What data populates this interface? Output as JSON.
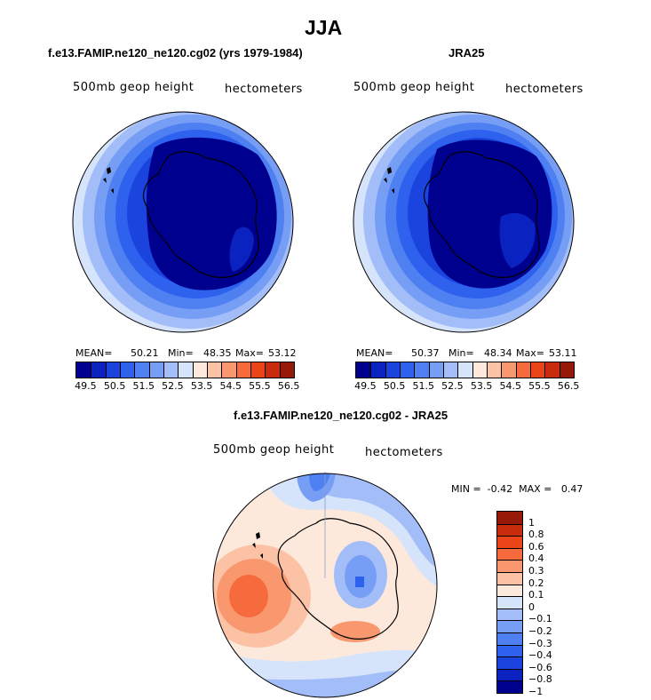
{
  "season": "JJA",
  "panels": {
    "model": {
      "title": "f.e13.FAMIP.ne120_ne120.cg02 (yrs 1979-1984)",
      "var": "500mb geop height",
      "units": "hectometers",
      "mean_label": "MEAN=",
      "mean": "50.21",
      "min_label": "Min=",
      "min": "48.35",
      "max_label": "Max=",
      "max": "53.12"
    },
    "obs": {
      "title": "JRA25",
      "var": "500mb geop height",
      "units": "hectometers",
      "mean_label": "MEAN=",
      "mean": "50.37",
      "min_label": "Min=",
      "min": "48.34",
      "max_label": "Max=",
      "max": "53.11"
    },
    "diff": {
      "title": "f.e13.FAMIP.ne120_ne120.cg02 - JRA25",
      "var": "500mb geop height",
      "units": "hectometers",
      "minmax": "MIN =  -0.42  MAX =   0.47"
    }
  },
  "colorbar_abs": {
    "colors": [
      "#00008f",
      "#0a22c0",
      "#1a44dd",
      "#2d61ee",
      "#4f80f2",
      "#779ef5",
      "#a2bdf8",
      "#d5e3fb",
      "#fde8dc",
      "#fcc2a5",
      "#f9976e",
      "#f56b3d",
      "#ea4418",
      "#c92c0d",
      "#971a09"
    ],
    "labels": [
      "49.5",
      "50.5",
      "51.5",
      "52.5",
      "53.5",
      "54.5",
      "55.5",
      "56.5"
    ]
  },
  "colorbar_diff": {
    "colors": [
      "#00008f",
      "#0a22c0",
      "#1a44dd",
      "#2d61ee",
      "#4f80f2",
      "#779ef5",
      "#a2bdf8",
      "#d5e3fb",
      "#fde8dc",
      "#fcc2a5",
      "#f9976e",
      "#f56b3d",
      "#ea4418",
      "#c92c0d",
      "#971a09"
    ],
    "labels": [
      "1",
      "0.8",
      "0.6",
      "0.4",
      "0.3",
      "0.2",
      "0.1",
      "0",
      "−0.1",
      "−0.2",
      "−0.3",
      "−0.4",
      "−0.6",
      "−0.8",
      "−1"
    ]
  }
}
